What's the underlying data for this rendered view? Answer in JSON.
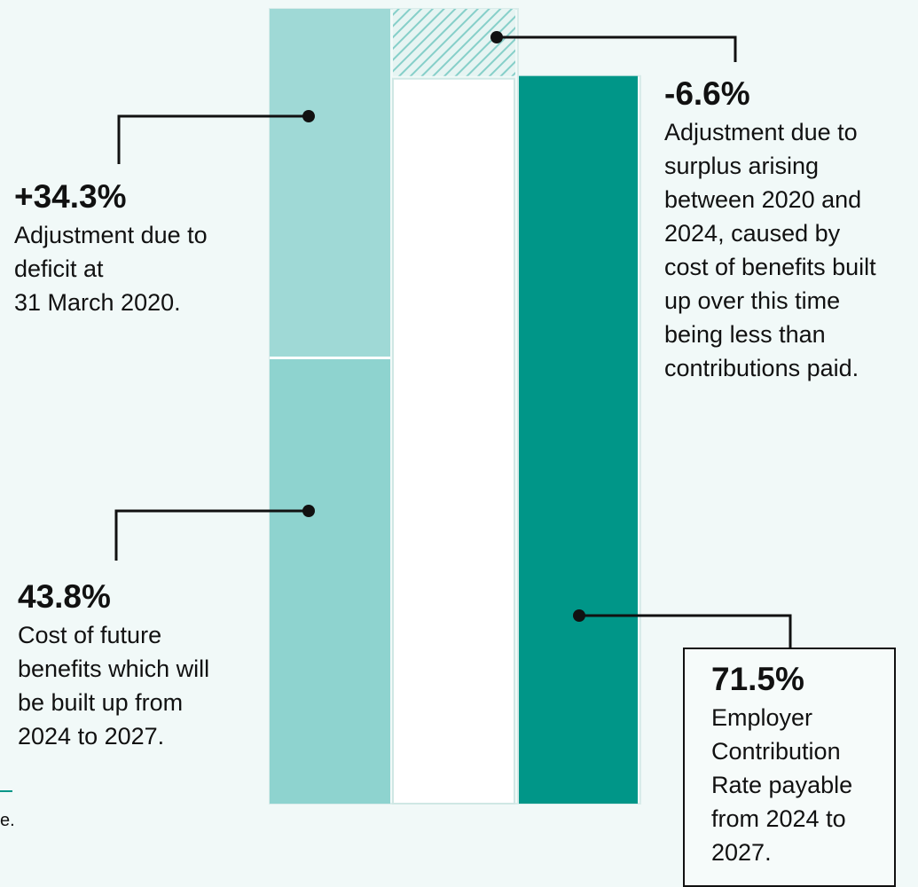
{
  "chart_data": {
    "type": "bar",
    "subtype": "waterfall-stacked",
    "colors": {
      "background": "#f1f9f8",
      "future_benefits": "#8ed3cf",
      "deficit_adjustment": "#9fd9d6",
      "surplus_adjustment_hatch": "#86cfc9",
      "total": "#009688"
    },
    "segments": [
      {
        "key": "future_benefits",
        "value": 43.8,
        "value_label": "43.8%",
        "description": "Cost of future benefits which will be built up from 2024 to 2027."
      },
      {
        "key": "deficit_adjustment",
        "value": 34.3,
        "value_label": "+34.3%",
        "description": "Adjustment due to deficit at 31 March 2020."
      },
      {
        "key": "surplus_adjustment",
        "value": -6.6,
        "value_label": "-6.6%",
        "description": "Adjustment due to surplus arising between 2020 and 2024, caused by cost of benefits built up over this time being less than contributions paid."
      },
      {
        "key": "total",
        "value": 71.5,
        "value_label": "71.5%",
        "description": "Employer Contribution Rate payable from 2024 to 2027."
      }
    ],
    "stacked_total": 78.1
  },
  "labels": {
    "deficit": {
      "pct": "+34.3%",
      "lines": [
        "Adjustment due to",
        "deficit at",
        "31 March 2020."
      ]
    },
    "future": {
      "pct": "43.8%",
      "lines": [
        "Cost of future",
        "benefits which will",
        "be built up from",
        "2024 to 2027."
      ]
    },
    "surplus": {
      "pct": "-6.6%",
      "lines": [
        "Adjustment due to",
        "surplus arising",
        "between 2020 and",
        "2024, caused by",
        "cost of benefits built",
        "up over this time",
        "being less than",
        "contributions paid."
      ]
    },
    "total": {
      "pct": "71.5%",
      "lines": [
        "Employer",
        "Contribution",
        "Rate payable",
        "from 2024 to",
        "2027."
      ]
    }
  },
  "page_fragment": "e."
}
